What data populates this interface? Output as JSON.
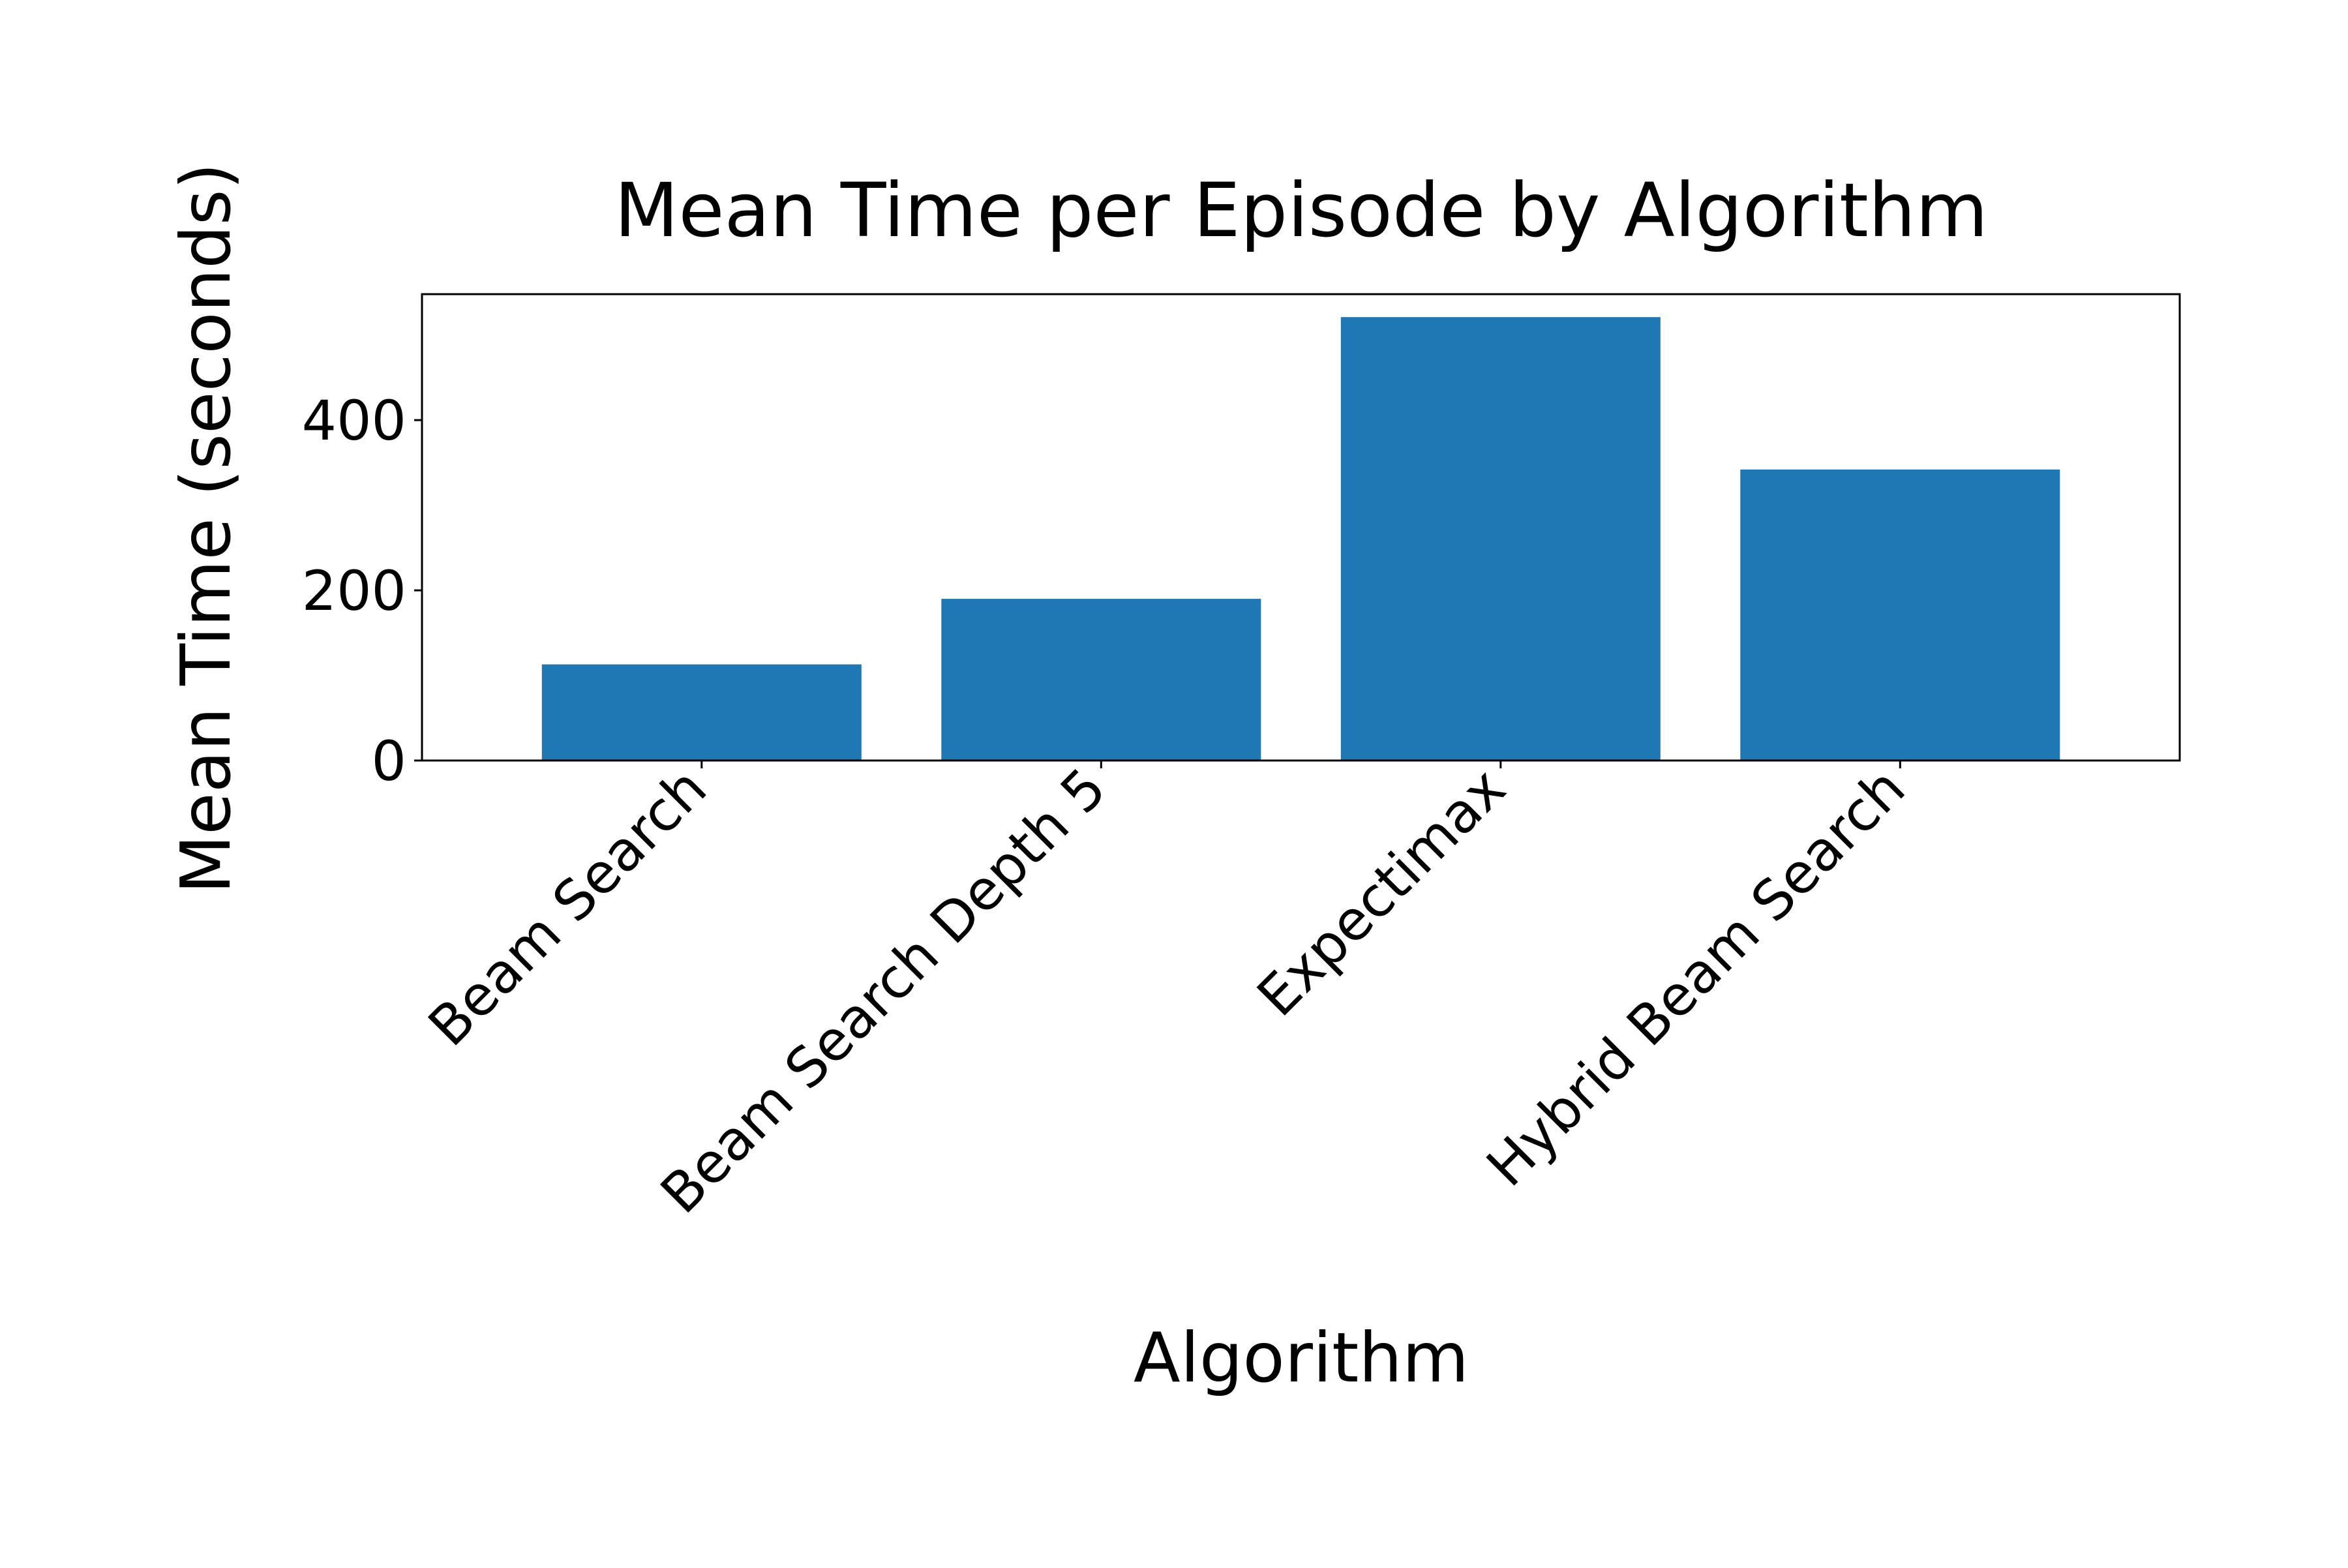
{
  "chart_data": {
    "type": "bar",
    "title": "Mean Time per Episode by Algorithm",
    "xlabel": "Algorithm",
    "ylabel": "Mean Time (seconds)",
    "categories": [
      "Beam Search",
      "Beam Search Depth 5",
      "Expectimax",
      "Hybrid Beam Search"
    ],
    "values": [
      113,
      190,
      521,
      342
    ],
    "ylim": [
      0,
      548
    ],
    "yticks": [
      0,
      200,
      400
    ],
    "ytick_labels": [
      "0",
      "200",
      "400"
    ],
    "grid": false,
    "legend": "none",
    "colors": {
      "bar": "#1f77b4",
      "axes": "#000000",
      "background": "#ffffff"
    }
  }
}
